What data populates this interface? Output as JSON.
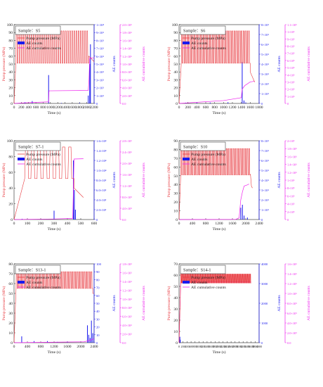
{
  "colors": {
    "pressure": "#e8393f",
    "ae": "#1a1aee",
    "cum": "#ee22ee",
    "axis": "#222222"
  },
  "legend_labels": {
    "pressure": "Pump pressure (MPa)",
    "ae": "AE counts",
    "cum": "AE cumulative counts"
  },
  "axis_titles": {
    "x": "Time (s)",
    "y_pressure": "Pump pressure (MPa)",
    "y_ae": "AE counts",
    "y_cum": "AE cumulative counts"
  },
  "chart_data": [
    {
      "type": "line",
      "sample": "Sample：S5",
      "xlim": [
        0,
        2200
      ],
      "xticks": [
        "0",
        "200",
        "400",
        "600",
        "800",
        "1000",
        "1200",
        "1400",
        "1600",
        "1800",
        "2000",
        "2200"
      ],
      "pressure": {
        "ylim": [
          0,
          100
        ],
        "yticks": [
          "0",
          "10",
          "20",
          "30",
          "40",
          "50",
          "60",
          "70",
          "80",
          "90",
          "100"
        ],
        "low": 51,
        "high": 92,
        "t_start": 50,
        "t_end": 2050,
        "cycles": 34,
        "after": [
          [
            2050,
            60
          ],
          [
            2100,
            58
          ],
          [
            2200,
            53
          ]
        ]
      },
      "ae": {
        "ylim": [
          0,
          10000
        ],
        "yticks": [
          "0",
          "1×10³",
          "2×10³",
          "3×10³",
          "4×10³",
          "5×10³",
          "6×10³",
          "7×10³",
          "8×10³",
          "9×10³",
          "1×10⁴"
        ],
        "bars": [
          [
            300,
            150
          ],
          [
            500,
            300
          ],
          [
            950,
            3600
          ],
          [
            1300,
            60
          ],
          [
            1800,
            80
          ],
          [
            2040,
            1000
          ],
          [
            2080,
            5000
          ],
          [
            2100,
            7500
          ]
        ]
      },
      "cum": {
        "ylim": [
          0,
          2000000
        ],
        "yticks": [
          "0.0",
          "2.0×10⁵",
          "4.0×10⁵",
          "6.0×10⁵",
          "8.0×10⁵",
          "1.0×10⁶",
          "1.2×10⁶",
          "1.4×10⁶",
          "1.6×10⁶",
          "1.8×10⁶",
          "2.0×10⁶"
        ],
        "points": [
          [
            0,
            0
          ],
          [
            300,
            15000
          ],
          [
            950,
            40000
          ],
          [
            960,
            320000
          ],
          [
            2040,
            330000
          ],
          [
            2060,
            600000
          ],
          [
            2080,
            1150000
          ],
          [
            2200,
            1160000
          ]
        ]
      }
    },
    {
      "type": "line",
      "sample": "Sample：S6",
      "xlim": [
        0,
        1800
      ],
      "xticks": [
        "0",
        "200",
        "400",
        "600",
        "800",
        "1000",
        "1200",
        "1400",
        "1600",
        "1800"
      ],
      "pressure": {
        "ylim": [
          0,
          100
        ],
        "yticks": [
          "0",
          "10",
          "20",
          "30",
          "40",
          "50",
          "60",
          "70",
          "80",
          "90",
          "100"
        ],
        "low": 51,
        "high": 92,
        "t_start": 50,
        "t_end": 1600,
        "cycles": 38,
        "after": [
          [
            1600,
            40
          ],
          [
            1700,
            27
          ]
        ]
      },
      "ae": {
        "ylim": [
          0,
          8000
        ],
        "yticks": [
          "0",
          "1×10³",
          "2×10³",
          "3×10³",
          "4×10³",
          "5×10³",
          "6×10³",
          "7×10³",
          "8×10³"
        ],
        "bars": [
          [
            150,
            80
          ],
          [
            400,
            60
          ],
          [
            700,
            90
          ],
          [
            1100,
            120
          ],
          [
            1420,
            4200
          ],
          [
            1460,
            300
          ],
          [
            1500,
            100
          ]
        ]
      },
      "cum": {
        "ylim": [
          0,
          1100000
        ],
        "yticks": [
          "0",
          "1×10⁵",
          "2×10⁵",
          "3×10⁵",
          "4×10⁵",
          "5×10⁵",
          "6×10⁵",
          "7×10⁵",
          "8×10⁵",
          "9×10⁵",
          "1×10⁶",
          "1.1×10⁶"
        ],
        "points": [
          [
            0,
            0
          ],
          [
            1000,
            40000
          ],
          [
            1400,
            80000
          ],
          [
            1420,
            200000
          ],
          [
            1480,
            250000
          ],
          [
            1600,
            300000
          ],
          [
            1700,
            310000
          ]
        ]
      }
    },
    {
      "type": "line",
      "sample": "Sample：S7-1",
      "xlim": [
        0,
        600
      ],
      "xticks": [
        "0",
        "100",
        "200",
        "300",
        "400",
        "500",
        "600"
      ],
      "pressure": {
        "ylim": [
          0,
          100
        ],
        "yticks": [
          "0",
          "20",
          "40",
          "60",
          "80",
          "100"
        ],
        "low": 52,
        "high": 92,
        "t_start": 80,
        "t_end": 450,
        "cycles": 8,
        "after": [
          [
            450,
            40
          ],
          [
            520,
            28
          ]
        ]
      },
      "ae": {
        "ylim": [
          0,
          16000
        ],
        "yticks": [
          "0",
          "2.0×10³",
          "4.0×10³",
          "6.0×10³",
          "8.0×10³",
          "1.0×10⁴",
          "1.2×10⁴",
          "1.4×10⁴",
          "1.6×10⁴"
        ],
        "bars": [
          [
            60,
            150
          ],
          [
            300,
            1800
          ],
          [
            445,
            12000
          ],
          [
            452,
            6000
          ],
          [
            460,
            2000
          ]
        ]
      },
      "cum": {
        "ylim": [
          0,
          2800000
        ],
        "yticks": [
          "0.0",
          "4.0×10⁵",
          "8.0×10⁵",
          "1.2×10⁶",
          "1.6×10⁶",
          "2.0×10⁶",
          "2.4×10⁶",
          "2.8×10⁶"
        ],
        "points": [
          [
            0,
            0
          ],
          [
            300,
            20000
          ],
          [
            440,
            40000
          ],
          [
            450,
            2150000
          ],
          [
            520,
            2160000
          ]
        ]
      }
    },
    {
      "type": "line",
      "sample": "Sample：S10",
      "xlim": [
        0,
        2400
      ],
      "xticks": [
        "0",
        "400",
        "800",
        "1200",
        "1600",
        "2000",
        "2400"
      ],
      "pressure": {
        "ylim": [
          0,
          90
        ],
        "yticks": [
          "0",
          "10",
          "20",
          "30",
          "40",
          "50",
          "60",
          "70",
          "80",
          "90"
        ],
        "low": 51,
        "high": 81,
        "t_start": 50,
        "t_end": 2140,
        "cycles": 40,
        "after": [
          [
            2140,
            52
          ],
          [
            2170,
            38
          ],
          [
            2200,
            36
          ]
        ]
      },
      "ae": {
        "ylim": [
          0,
          8000
        ],
        "yticks": [
          "0",
          "1×10³",
          "2×10³",
          "3×10³",
          "4×10³",
          "5×10³",
          "6×10³",
          "7×10³",
          "8×10³"
        ],
        "bars": [
          [
            1850,
            1200
          ],
          [
            1900,
            1500
          ],
          [
            1950,
            400
          ],
          [
            2050,
            200
          ]
        ]
      },
      "cum": {
        "ylim": [
          0,
          2000000
        ],
        "yticks": [
          "0",
          "2×10⁵",
          "4×10⁵",
          "6×10⁵",
          "8×10⁵",
          "1×10⁶",
          "1.2×10⁶",
          "1.4×10⁶",
          "1.6×10⁶",
          "1.8×10⁶",
          "2×10⁶"
        ],
        "points": [
          [
            0,
            0
          ],
          [
            1700,
            5000
          ],
          [
            1800,
            40000
          ],
          [
            1850,
            500000
          ],
          [
            1900,
            700000
          ],
          [
            1950,
            850000
          ],
          [
            2050,
            880000
          ],
          [
            2100,
            900000
          ]
        ]
      }
    },
    {
      "type": "line",
      "sample": "Sample：S13-1",
      "xlim": [
        0,
        2400
      ],
      "xticks": [
        "0",
        "400",
        "800",
        "1200",
        "1600",
        "2000",
        "2400"
      ],
      "pressure": {
        "ylim": [
          0,
          80
        ],
        "yticks": [
          "0",
          "10",
          "20",
          "30",
          "40",
          "50",
          "60",
          "70",
          "80"
        ],
        "low": 55,
        "high": 72,
        "t_start": 60,
        "t_end": 2360,
        "cycles": 44,
        "after": [
          [
            2360,
            50
          ],
          [
            2400,
            50
          ]
        ]
      },
      "ae": {
        "ylim": [
          0,
          100
        ],
        "yticks": [
          "0",
          "10",
          "20",
          "30",
          "40",
          "50",
          "60",
          "70",
          "80",
          "90",
          "100"
        ],
        "bars": [
          [
            230,
            8
          ],
          [
            600,
            2
          ],
          [
            1000,
            2
          ],
          [
            1300,
            1
          ],
          [
            1600,
            1
          ],
          [
            2200,
            22
          ],
          [
            2240,
            10
          ],
          [
            2280,
            6
          ],
          [
            2320,
            28
          ],
          [
            2360,
            12
          ]
        ]
      },
      "cum": {
        "ylim": [
          0,
          1800
        ],
        "yticks": [
          "0.0",
          "2.0×10²",
          "4.0×10²",
          "6.0×10²",
          "8.0×10²",
          "1.0×10³",
          "1.2×10³",
          "1.4×10³",
          "1.6×10³",
          "1.8×10³"
        ],
        "points": [
          [
            0,
            0
          ],
          [
            2100,
            20
          ],
          [
            2300,
            60
          ],
          [
            2400,
            90
          ]
        ]
      }
    },
    {
      "type": "line",
      "sample": "Sample：S14-1",
      "xlim": [
        0,
        4000
      ],
      "xticks": [
        "0",
        "200",
        "400",
        "600",
        "800",
        "1000",
        "1200",
        "1400",
        "1600",
        "1800",
        "2000",
        "2200",
        "2400",
        "2600",
        "2800",
        "3000",
        "3200",
        "3400",
        "3600",
        "3800",
        "4000"
      ],
      "pressure": {
        "ylim": [
          0,
          70
        ],
        "yticks": [
          "0",
          "10",
          "20",
          "30",
          "40",
          "50",
          "60",
          "70"
        ],
        "low": 53,
        "high": 61,
        "t_start": 80,
        "t_end": 3600,
        "cycles": 72,
        "after": [
          [
            3600,
            53
          ]
        ]
      },
      "ae": {
        "ylim": [
          0,
          4000
        ],
        "yticks": [
          "0",
          "1000",
          "2000",
          "3000",
          "4000"
        ],
        "bars": [
          [
            40,
            300
          ],
          [
            60,
            150
          ]
        ]
      },
      "cum": {
        "ylim": [
          0,
          1600000
        ],
        "yticks": [
          "0.0",
          "2.0×10⁵",
          "4.0×10⁵",
          "6.0×10⁵",
          "8.0×10⁵",
          "1.0×10⁶",
          "1.2×10⁶",
          "1.4×10⁶",
          "1.6×10⁶"
        ],
        "points": [
          [
            0,
            0
          ],
          [
            80,
            1230000
          ],
          [
            3600,
            1230000
          ]
        ]
      }
    }
  ]
}
